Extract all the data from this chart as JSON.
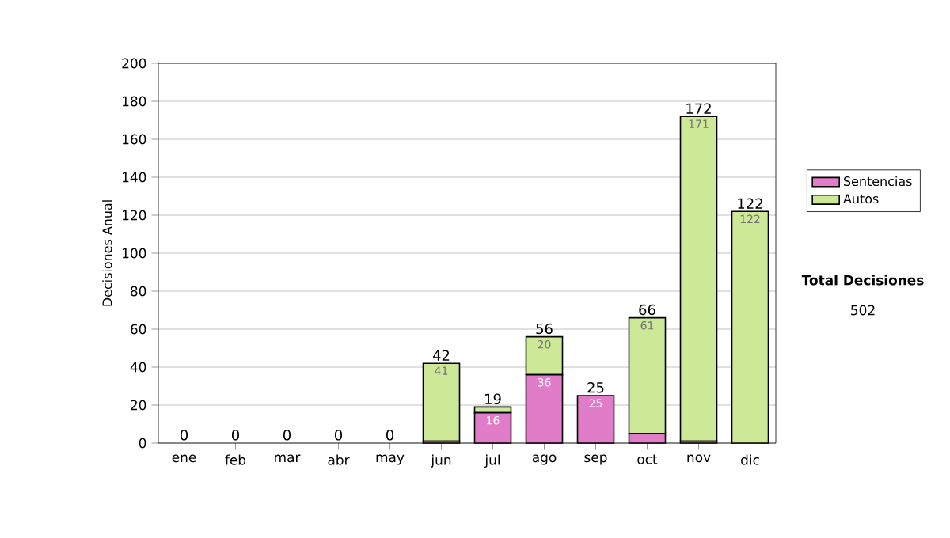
{
  "chart_data": {
    "type": "bar",
    "stacked": true,
    "ylabel": "Decisiones Anual",
    "categories": [
      "ene",
      "feb",
      "mar",
      "abr",
      "may",
      "jun",
      "jul",
      "ago",
      "sep",
      "oct",
      "nov",
      "dic"
    ],
    "series": [
      {
        "name": "Sentencias",
        "color": "#e07cc8",
        "values": [
          0,
          0,
          0,
          0,
          0,
          1,
          16,
          36,
          25,
          5,
          1,
          0
        ],
        "value_labels": [
          null,
          null,
          null,
          null,
          null,
          null,
          "16",
          "36",
          "25",
          null,
          null,
          null
        ]
      },
      {
        "name": "Autos",
        "color": "#cde896",
        "values": [
          0,
          0,
          0,
          0,
          0,
          41,
          3,
          20,
          0,
          61,
          171,
          122
        ],
        "value_labels": [
          null,
          null,
          null,
          null,
          null,
          "41",
          null,
          "20",
          null,
          "61",
          "171",
          "122"
        ]
      }
    ],
    "totals": [
      "0",
      "0",
      "0",
      "0",
      "0",
      "42",
      "19",
      "56",
      "25",
      "66",
      "172",
      "122"
    ],
    "ylim": [
      0,
      200
    ],
    "yticks": [
      0,
      20,
      40,
      60,
      80,
      100,
      120,
      140,
      160,
      180,
      200
    ],
    "grid": "y",
    "legend": "right",
    "annotations": [
      "**Total Decisiones**",
      "502"
    ]
  }
}
